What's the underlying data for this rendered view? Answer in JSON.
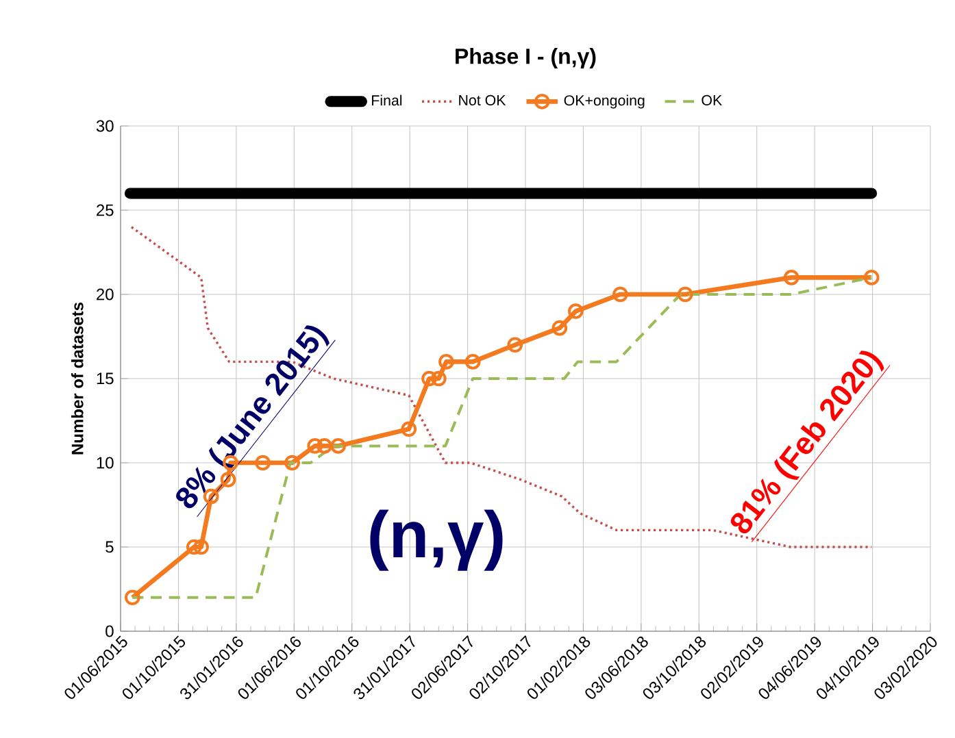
{
  "chart_data": {
    "type": "line",
    "title": "Phase I - (n,γ)",
    "ylabel": "Number of datasets",
    "xlim": [
      "2015-06-01",
      "2020-02-03"
    ],
    "ylim": [
      0,
      30
    ],
    "yticks": [
      0,
      5,
      10,
      15,
      20,
      25,
      30
    ],
    "xticks": [
      {
        "value": "2015-06-01",
        "label": "01/06/2015"
      },
      {
        "value": "2015-10-01",
        "label": "01/10/2015"
      },
      {
        "value": "2016-01-31",
        "label": "31/01/2016"
      },
      {
        "value": "2016-06-01",
        "label": "01/06/2016"
      },
      {
        "value": "2016-10-01",
        "label": "01/10/2016"
      },
      {
        "value": "2017-01-31",
        "label": "31/01/2017"
      },
      {
        "value": "2017-06-02",
        "label": "02/06/2017"
      },
      {
        "value": "2017-10-02",
        "label": "02/10/2017"
      },
      {
        "value": "2018-02-01",
        "label": "01/02/2018"
      },
      {
        "value": "2018-06-03",
        "label": "03/06/2018"
      },
      {
        "value": "2018-10-03",
        "label": "03/10/2018"
      },
      {
        "value": "2019-02-02",
        "label": "02/02/2019"
      },
      {
        "value": "2019-06-04",
        "label": "04/06/2019"
      },
      {
        "value": "2019-10-04",
        "label": "04/10/2019"
      },
      {
        "value": "2020-02-03",
        "label": "03/02/2020"
      }
    ],
    "grid": true,
    "legend": "top",
    "series": [
      {
        "name": "Final",
        "color": "#000000",
        "line_style": "solid",
        "marker": "none",
        "x": [
          "2015-06-21",
          "2019-10-02"
        ],
        "values": [
          26,
          26
        ]
      },
      {
        "name": "Not OK",
        "color": "#c0504d",
        "line_style": "dotted",
        "marker": "none",
        "x": [
          "2015-06-24",
          "2015-11-18",
          "2015-12-02",
          "2016-01-16",
          "2016-05-28",
          "2016-08-23",
          "2017-01-29",
          "2017-04-16",
          "2017-06-08",
          "2017-09-22",
          "2017-12-18",
          "2018-01-25",
          "2018-04-12",
          "2018-11-01",
          "2019-04-14",
          "2019-10-02"
        ],
        "values": [
          24,
          21,
          18,
          16,
          16,
          15,
          14,
          10,
          10,
          9,
          8,
          7,
          6,
          6,
          5,
          5
        ]
      },
      {
        "name": "OK+ongoing",
        "color": "#f47a20",
        "line_style": "solid",
        "marker": "circle",
        "x": [
          "2015-06-26",
          "2015-11-03",
          "2015-11-18",
          "2015-12-09",
          "2016-01-14",
          "2016-01-19",
          "2016-03-27",
          "2016-05-28",
          "2016-07-15",
          "2016-08-04",
          "2016-09-02",
          "2017-01-29",
          "2017-03-13",
          "2017-04-02",
          "2017-04-18",
          "2017-06-13",
          "2017-09-10",
          "2017-12-13",
          "2018-01-16",
          "2018-04-20",
          "2018-09-04",
          "2019-04-16",
          "2019-10-02"
        ],
        "values": [
          2,
          5,
          5,
          8,
          9,
          10,
          10,
          10,
          11,
          11,
          11,
          12,
          15,
          15,
          16,
          16,
          17,
          18,
          19,
          20,
          20,
          21,
          21
        ]
      },
      {
        "name": "OK",
        "color": "#9bbb59",
        "line_style": "dashed",
        "marker": "none",
        "x": [
          "2015-06-26",
          "2016-03-12",
          "2016-05-24",
          "2016-07-06",
          "2016-08-23",
          "2017-04-16",
          "2017-06-13",
          "2017-12-23",
          "2018-01-20",
          "2018-04-12",
          "2018-08-25",
          "2019-04-16",
          "2019-10-02"
        ],
        "values": [
          2,
          2,
          10,
          10,
          11,
          11,
          15,
          15,
          16,
          16,
          20,
          20,
          21
        ]
      }
    ],
    "annotations": [
      "8% (June 2015)",
      "81% (Feb 2020)",
      "(n,γ)"
    ]
  }
}
